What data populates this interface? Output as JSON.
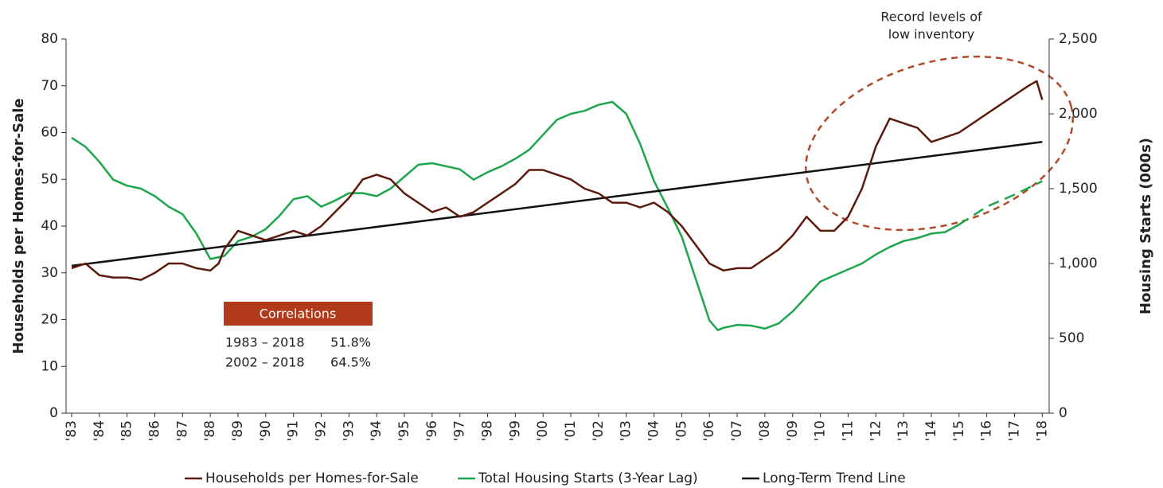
{
  "chart_data": {
    "type": "line",
    "y_label": "Households per Homes-for-Sale",
    "y2_label": "Housing Starts (000s)",
    "xlim": [
      1982.8,
      2018.25
    ],
    "xticks": [
      {
        "value": 1983,
        "label": "'83"
      },
      {
        "value": 1984,
        "label": "'84"
      },
      {
        "value": 1985,
        "label": "'85"
      },
      {
        "value": 1986,
        "label": "'86"
      },
      {
        "value": 1987,
        "label": "'87"
      },
      {
        "value": 1988,
        "label": "'88"
      },
      {
        "value": 1989,
        "label": "'89"
      },
      {
        "value": 1990,
        "label": "'90"
      },
      {
        "value": 1991,
        "label": "'91"
      },
      {
        "value": 1992,
        "label": "'92"
      },
      {
        "value": 1993,
        "label": "'93"
      },
      {
        "value": 1994,
        "label": "'94"
      },
      {
        "value": 1995,
        "label": "'95"
      },
      {
        "value": 1996,
        "label": "'96"
      },
      {
        "value": 1997,
        "label": "'97"
      },
      {
        "value": 1998,
        "label": "'98"
      },
      {
        "value": 1999,
        "label": "'99"
      },
      {
        "value": 2000,
        "label": "'00"
      },
      {
        "value": 2001,
        "label": "'01"
      },
      {
        "value": 2002,
        "label": "'02"
      },
      {
        "value": 2003,
        "label": "'03"
      },
      {
        "value": 2004,
        "label": "'04"
      },
      {
        "value": 2005,
        "label": "'05"
      },
      {
        "value": 2006,
        "label": "'06"
      },
      {
        "value": 2007,
        "label": "'07"
      },
      {
        "value": 2008,
        "label": "'08"
      },
      {
        "value": 2009,
        "label": "'09"
      },
      {
        "value": 2010,
        "label": "'10"
      },
      {
        "value": 2011,
        "label": "'11"
      },
      {
        "value": 2012,
        "label": "'12"
      },
      {
        "value": 2013,
        "label": "'13"
      },
      {
        "value": 2014,
        "label": "'14"
      },
      {
        "value": 2015,
        "label": "'15"
      },
      {
        "value": 2016,
        "label": "'16"
      },
      {
        "value": 2017,
        "label": "'17"
      },
      {
        "value": 2018,
        "label": "'18"
      }
    ],
    "ylim": [
      0,
      80
    ],
    "yticks": [
      0,
      10,
      20,
      30,
      40,
      50,
      60,
      70,
      80
    ],
    "y2lim": [
      0,
      2500
    ],
    "y2ticks": [
      0,
      500,
      {
        "value": 1000,
        "label": "1,000"
      },
      {
        "value": 1500,
        "label": "1,500"
      },
      {
        "value": 2000,
        "label": "2,000"
      },
      {
        "value": 2500,
        "label": "2,500"
      }
    ],
    "series": [
      {
        "name": "Households per Homes-for-Sale",
        "color": "#5c1a0b",
        "x": [
          1983,
          1983.5,
          1984,
          1984.5,
          1985,
          1985.5,
          1986,
          1986.5,
          1987,
          1987.5,
          1988,
          1988.3,
          1988.5,
          1989,
          1989.5,
          1990,
          1990.5,
          1991,
          1991.5,
          1992,
          1992.5,
          1993,
          1993.5,
          1994,
          1994.5,
          1995,
          1995.5,
          1996,
          1996.5,
          1997,
          1997.5,
          1998,
          1998.5,
          1999,
          1999.5,
          2000,
          2000.5,
          2001,
          2001.5,
          2002,
          2002.5,
          2003,
          2003.5,
          2004,
          2004.5,
          2005,
          2005.5,
          2006,
          2006.5,
          2007,
          2007.5,
          2008,
          2008.5,
          2009,
          2009.5,
          2010,
          2010.5,
          2011,
          2011.5,
          2012,
          2012.5,
          2013,
          2013.5,
          2014,
          2014.5,
          2015,
          2015.5,
          2016,
          2016.5,
          2017,
          2017.5,
          2017.8,
          2018
        ],
        "values": [
          31,
          32,
          29.5,
          29,
          29,
          28.5,
          30,
          32,
          32,
          31,
          30.5,
          32,
          35,
          39,
          38,
          37,
          38,
          39,
          38,
          40,
          43,
          46,
          50,
          51,
          50,
          47,
          45,
          43,
          44,
          42,
          43,
          45,
          47,
          49,
          52,
          52,
          51,
          50,
          48,
          47,
          45,
          45,
          44,
          45,
          43,
          40,
          36,
          32,
          30.5,
          31,
          31,
          33,
          35,
          38,
          42,
          39,
          39,
          42,
          48,
          57,
          63,
          62,
          61,
          58,
          59,
          60,
          62,
          64,
          66,
          68,
          70,
          71,
          67
        ]
      },
      {
        "name": "Total Housing Starts (3-Year Lag)",
        "color": "#1fa64c",
        "axis": "y2",
        "dash_start": 2015,
        "x": [
          1983,
          1983.5,
          1984,
          1984.5,
          1985,
          1985.5,
          1986,
          1986.5,
          1987,
          1987.5,
          1988,
          1988.5,
          1989,
          1989.5,
          1990,
          1990.5,
          1991,
          1991.5,
          1992,
          1992.5,
          1993,
          1993.5,
          1994,
          1994.5,
          1995,
          1995.5,
          1996,
          1996.5,
          1997,
          1997.5,
          1998,
          1998.5,
          1999,
          1999.5,
          2000,
          2000.5,
          2001,
          2001.5,
          2002,
          2002.5,
          2003,
          2003.5,
          2004,
          2004.5,
          2005,
          2005.5,
          2006,
          2006.3,
          2006.5,
          2007,
          2007.5,
          2008,
          2008.5,
          2009,
          2009.5,
          2010,
          2010.5,
          2011,
          2011.5,
          2012,
          2012.5,
          2013,
          2013.5,
          2014,
          2014.5,
          2015,
          2016,
          2017,
          2018
        ],
        "values": [
          1840,
          1780,
          1680,
          1560,
          1520,
          1500,
          1450,
          1380,
          1330,
          1200,
          1030,
          1050,
          1150,
          1180,
          1230,
          1320,
          1430,
          1450,
          1380,
          1420,
          1470,
          1470,
          1450,
          1500,
          1580,
          1660,
          1670,
          1650,
          1630,
          1560,
          1610,
          1650,
          1700,
          1760,
          1860,
          1960,
          2000,
          2020,
          2060,
          2080,
          2000,
          1800,
          1550,
          1370,
          1180,
          900,
          620,
          555,
          570,
          590,
          585,
          565,
          600,
          680,
          780,
          880,
          920,
          960,
          1000,
          1060,
          1110,
          1150,
          1170,
          1200,
          1210,
          1260,
          1380,
          1460,
          1550
        ]
      },
      {
        "name": "Long-Term Trend Line",
        "color": "#111111",
        "x": [
          1983,
          2018
        ],
        "values": [
          31.5,
          58
        ]
      }
    ],
    "annotation": [
      "Record levels of",
      "low inventory"
    ],
    "correlations": {
      "title": "Correlations",
      "rows": [
        [
          "1983 – 2018",
          "51.8%"
        ],
        [
          "2002 – 2018",
          "64.5%"
        ]
      ]
    }
  }
}
